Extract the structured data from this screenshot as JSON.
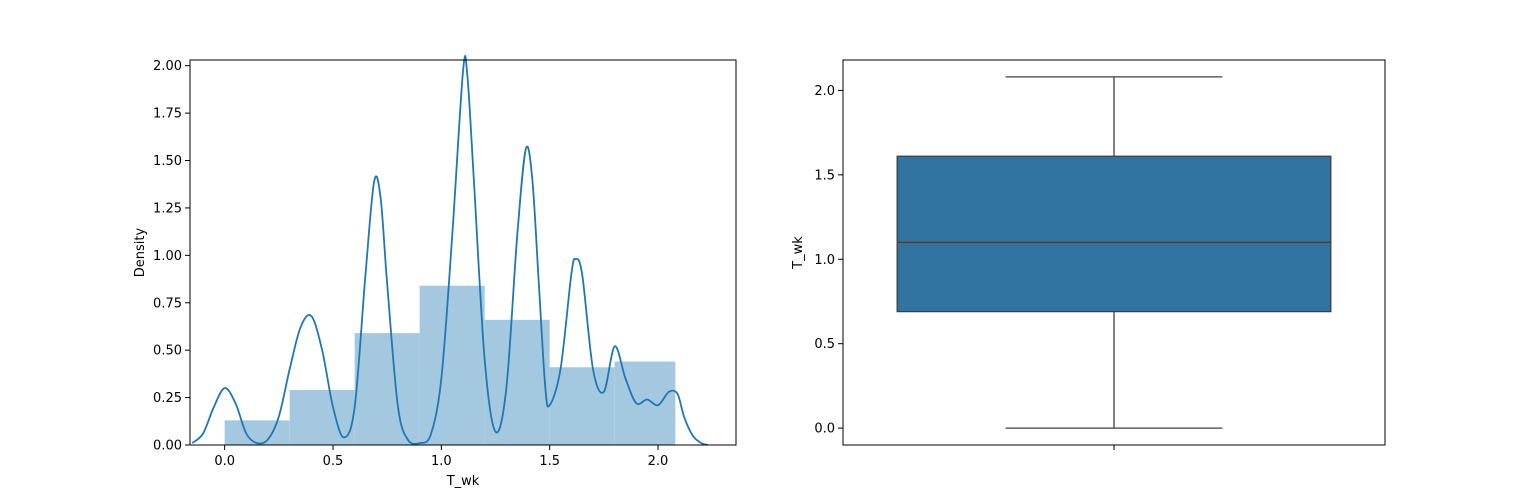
{
  "chart_data": [
    {
      "type": "bar",
      "subtype": "histogram-with-kde",
      "xlabel": "T_wk",
      "ylabel": "Density",
      "xlim": [
        -0.16,
        2.36
      ],
      "ylim": [
        0,
        2.03
      ],
      "x_ticks": [
        0.0,
        0.5,
        1.0,
        1.5,
        2.0
      ],
      "x_tick_labels": [
        "0.0",
        "0.5",
        "1.0",
        "1.5",
        "2.0"
      ],
      "y_ticks": [
        0.0,
        0.25,
        0.5,
        0.75,
        1.0,
        1.25,
        1.5,
        1.75,
        2.0
      ],
      "y_tick_labels": [
        "0.00",
        "0.25",
        "0.50",
        "0.75",
        "1.00",
        "1.25",
        "1.50",
        "1.75",
        "2.00"
      ],
      "grid": false,
      "bins": [
        {
          "x0": 0.0,
          "x1": 0.3,
          "value": 0.13
        },
        {
          "x0": 0.3,
          "x1": 0.6,
          "value": 0.29
        },
        {
          "x0": 0.6,
          "x1": 0.9,
          "value": 0.59
        },
        {
          "x0": 0.9,
          "x1": 1.2,
          "value": 0.84
        },
        {
          "x0": 1.2,
          "x1": 1.5,
          "value": 0.66
        },
        {
          "x0": 1.5,
          "x1": 1.8,
          "value": 0.41
        },
        {
          "x0": 1.8,
          "x1": 2.08,
          "value": 0.44
        }
      ],
      "kde": {
        "x": [
          -0.15,
          -0.1,
          -0.05,
          0,
          0.05,
          0.1,
          0.15,
          0.2,
          0.25,
          0.3,
          0.35,
          0.4,
          0.45,
          0.5,
          0.55,
          0.6,
          0.65,
          0.69,
          0.72,
          0.75,
          0.8,
          0.85,
          0.9,
          0.95,
          1.0,
          1.05,
          1.1,
          1.12,
          1.15,
          1.2,
          1.25,
          1.3,
          1.35,
          1.39,
          1.42,
          1.45,
          1.48,
          1.5,
          1.55,
          1.6,
          1.62,
          1.65,
          1.7,
          1.75,
          1.8,
          1.85,
          1.9,
          1.95,
          2.0,
          2.05,
          2.09,
          2.12,
          2.16,
          2.2,
          2.23
        ],
        "y": [
          0.01,
          0.06,
          0.2,
          0.3,
          0.22,
          0.06,
          0.01,
          0.03,
          0.15,
          0.4,
          0.62,
          0.68,
          0.5,
          0.2,
          0.04,
          0.2,
          0.9,
          1.39,
          1.3,
          0.85,
          0.2,
          0.02,
          0.01,
          0.05,
          0.35,
          1.1,
          1.97,
          1.95,
          1.4,
          0.45,
          0.07,
          0.3,
          1.1,
          1.56,
          1.4,
          0.85,
          0.3,
          0.21,
          0.4,
          0.9,
          0.98,
          0.9,
          0.4,
          0.28,
          0.52,
          0.35,
          0.22,
          0.24,
          0.21,
          0.28,
          0.27,
          0.15,
          0.05,
          0.01,
          0.0
        ]
      },
      "color": "#1f77b4",
      "bar_color": "#a5c8e1"
    },
    {
      "type": "box",
      "ylabel": "T_wk",
      "ylim": [
        -0.1,
        2.18
      ],
      "y_ticks": [
        0.0,
        0.5,
        1.0,
        1.5,
        2.0
      ],
      "y_tick_labels": [
        "0.0",
        "0.5",
        "1.0",
        "1.5",
        "2.0"
      ],
      "grid": false,
      "whisker_low": 0.0,
      "q1": 0.69,
      "median": 1.1,
      "q3": 1.61,
      "whisker_high": 2.08,
      "box_color": "#3274a1",
      "line_color": "#3f3f3f"
    }
  ]
}
